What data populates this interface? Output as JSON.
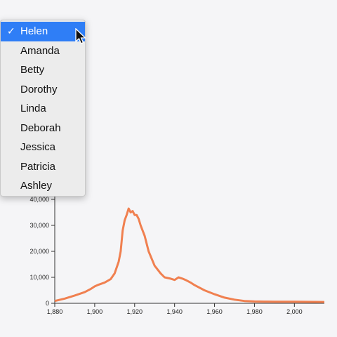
{
  "dropdown": {
    "options": [
      "Helen",
      "Amanda",
      "Betty",
      "Dorothy",
      "Linda",
      "Deborah",
      "Jessica",
      "Patricia",
      "Ashley"
    ],
    "selected_index": 0,
    "check_glyph": "✓",
    "selected_color": "#2f7ef6"
  },
  "chart_data": {
    "type": "line",
    "title": "",
    "xlabel": "",
    "ylabel": "",
    "line_color": "#f08050",
    "xlim": [
      1880,
      2015
    ],
    "ylim": [
      0,
      40000
    ],
    "x_ticks": [
      "1,880",
      "1,900",
      "1,920",
      "1,940",
      "1,960",
      "1,980",
      "2,000"
    ],
    "y_ticks": [
      "0",
      "10,000",
      "20,000",
      "30,000",
      "40,000"
    ],
    "series": [
      {
        "x": [
          1880,
          1885,
          1890,
          1895,
          1898,
          1900,
          1902,
          1905,
          1908,
          1910,
          1912,
          1913,
          1914,
          1915,
          1916,
          1917,
          1918,
          1919,
          1920,
          1921,
          1922,
          1923,
          1925,
          1927,
          1930,
          1933,
          1935,
          1938,
          1940,
          1942,
          1944,
          1946,
          1948,
          1950,
          1955,
          1960,
          1965,
          1970,
          1975,
          1980,
          1985,
          1990,
          2000,
          2010,
          2015
        ],
        "y": [
          900,
          1800,
          3000,
          4300,
          5500,
          6500,
          7200,
          8000,
          9300,
          11500,
          16000,
          20000,
          28000,
          32000,
          34000,
          36500,
          35000,
          35500,
          34000,
          34000,
          32500,
          30000,
          26000,
          20000,
          14500,
          11500,
          10000,
          9500,
          9000,
          10000,
          9500,
          8800,
          8000,
          7000,
          5000,
          3500,
          2200,
          1400,
          900,
          700,
          650,
          600,
          600,
          550,
          500
        ]
      }
    ]
  }
}
